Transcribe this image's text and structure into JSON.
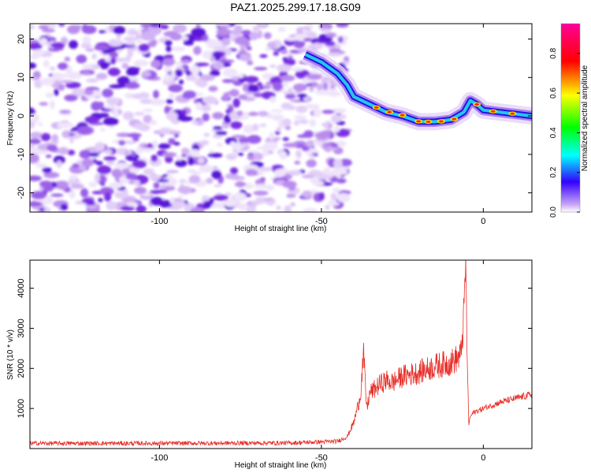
{
  "title": "PAZ1.2025.299.17.18.G09",
  "chart_data": [
    {
      "type": "heatmap",
      "xlabel": "Height of straight line (km)",
      "ylabel": "Frequency (Hz)",
      "xlim": [
        -140,
        15
      ],
      "ylim": [
        -25,
        24
      ],
      "xticks": [
        -100,
        -50,
        0
      ],
      "yticks": [
        -20,
        -10,
        0,
        10,
        20
      ],
      "colorbar": {
        "label": "Normalized spectral amplitude",
        "range": [
          0,
          0.95
        ],
        "ticks": [
          "0.0",
          "0.2",
          "0.4",
          "0.6",
          "0.8"
        ]
      },
      "signal_track": {
        "x": [
          -55,
          -50,
          -45,
          -42,
          -40,
          -35,
          -30,
          -25,
          -20,
          -15,
          -10,
          -6,
          -4,
          -2,
          0,
          5,
          10,
          15
        ],
        "y": [
          16,
          14,
          11,
          8,
          5,
          3,
          1,
          0,
          -1.5,
          -1.5,
          -1,
          1,
          4,
          3,
          1.5,
          1,
          0.5,
          0
        ]
      },
      "noise_region_x": [
        -140,
        -42
      ]
    },
    {
      "type": "line",
      "xlabel": "Height of straight line (km)",
      "ylabel": "SNR (10 * v/v)",
      "xlim": [
        -140,
        15
      ],
      "ylim": [
        0,
        4700
      ],
      "xticks": [
        -100,
        -50,
        0
      ],
      "yticks": [
        1000,
        2000,
        3000,
        4000
      ],
      "color": "#e8302a",
      "x": [
        -140,
        -100,
        -60,
        -45,
        -42,
        -40,
        -38,
        -37,
        -36,
        -35,
        -34,
        -32,
        -30,
        -28,
        -25,
        -20,
        -15,
        -10,
        -7,
        -6,
        -5.5,
        -5,
        -4.5,
        -4,
        -3,
        0,
        5,
        10,
        15
      ],
      "y": [
        130,
        130,
        140,
        180,
        300,
        650,
        1300,
        2350,
        1000,
        1400,
        1450,
        1600,
        1700,
        1650,
        1800,
        1900,
        2050,
        2150,
        2300,
        3300,
        4700,
        2400,
        600,
        800,
        900,
        1000,
        1150,
        1250,
        1350
      ]
    }
  ]
}
